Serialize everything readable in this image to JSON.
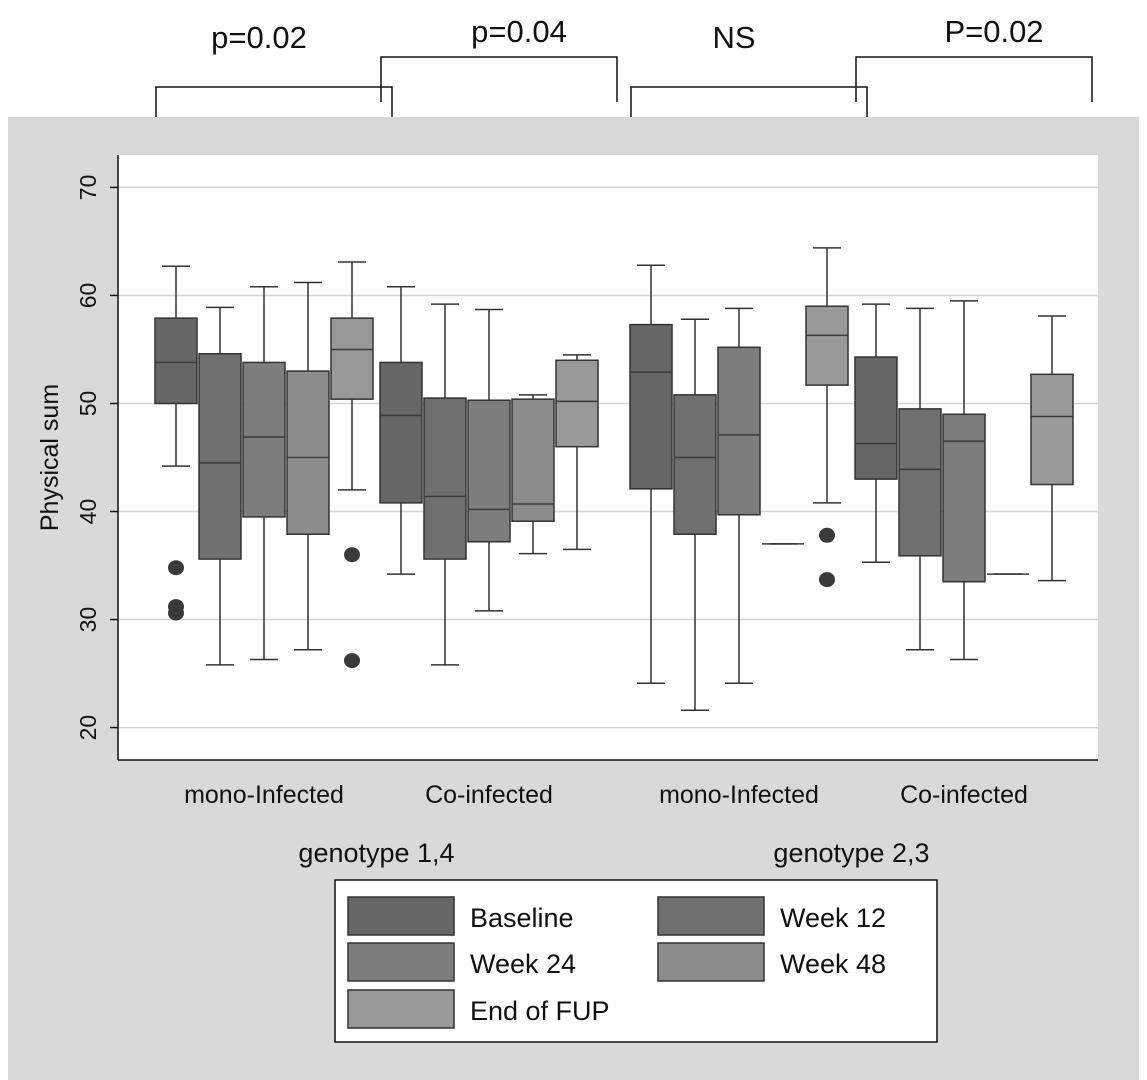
{
  "chart_data": {
    "type": "box",
    "ylabel": "Physical sum",
    "ylim": [
      17,
      73
    ],
    "yticks": [
      20,
      30,
      40,
      50,
      60,
      70
    ],
    "grid": true,
    "legend_position": "bottom",
    "groups": [
      {
        "label": "genotype 1,4",
        "subgroups": [
          "mono-Infected",
          "Co-infected"
        ]
      },
      {
        "label": "genotype 2,3",
        "subgroups": [
          "mono-Infected",
          "Co-infected"
        ]
      }
    ],
    "series": [
      {
        "name": "Baseline",
        "color": "#666666"
      },
      {
        "name": "Week 12",
        "color": "#6f6f6f"
      },
      {
        "name": "Week 24",
        "color": "#7d7d7d"
      },
      {
        "name": "Week 48",
        "color": "#8c8c8c"
      },
      {
        "name": "End of FUP",
        "color": "#999999"
      }
    ],
    "boxes": [
      {
        "group": 0,
        "subgroup": 0,
        "series": 0,
        "whisker_low": 44.2,
        "q1": 50.0,
        "median": 53.8,
        "q3": 57.9,
        "whisker_high": 62.7,
        "outliers": [
          34.8,
          31.2,
          30.6
        ]
      },
      {
        "group": 0,
        "subgroup": 0,
        "series": 1,
        "whisker_low": 25.8,
        "q1": 35.6,
        "median": 44.5,
        "q3": 54.6,
        "whisker_high": 58.9,
        "outliers": []
      },
      {
        "group": 0,
        "subgroup": 0,
        "series": 2,
        "whisker_low": 26.3,
        "q1": 39.5,
        "median": 46.9,
        "q3": 53.8,
        "whisker_high": 60.8,
        "outliers": []
      },
      {
        "group": 0,
        "subgroup": 0,
        "series": 3,
        "whisker_low": 27.2,
        "q1": 37.9,
        "median": 45.0,
        "q3": 53.0,
        "whisker_high": 61.2,
        "outliers": []
      },
      {
        "group": 0,
        "subgroup": 0,
        "series": 4,
        "whisker_low": 42.0,
        "q1": 50.4,
        "median": 55.0,
        "q3": 57.9,
        "whisker_high": 63.1,
        "outliers": [
          36.0,
          26.2
        ]
      },
      {
        "group": 0,
        "subgroup": 1,
        "series": 0,
        "whisker_low": 34.2,
        "q1": 40.8,
        "median": 48.9,
        "q3": 53.8,
        "whisker_high": 60.8,
        "outliers": []
      },
      {
        "group": 0,
        "subgroup": 1,
        "series": 1,
        "whisker_low": 25.8,
        "q1": 35.6,
        "median": 41.4,
        "q3": 50.5,
        "whisker_high": 59.2,
        "outliers": []
      },
      {
        "group": 0,
        "subgroup": 1,
        "series": 2,
        "whisker_low": 30.8,
        "q1": 37.2,
        "median": 40.2,
        "q3": 50.3,
        "whisker_high": 58.7,
        "outliers": []
      },
      {
        "group": 0,
        "subgroup": 1,
        "series": 3,
        "whisker_low": 36.1,
        "q1": 39.1,
        "median": 40.7,
        "q3": 50.4,
        "whisker_high": 50.8,
        "outliers": []
      },
      {
        "group": 0,
        "subgroup": 1,
        "series": 4,
        "whisker_low": 36.5,
        "q1": 46.0,
        "median": 50.2,
        "q3": 54.0,
        "whisker_high": 54.5,
        "outliers": []
      },
      {
        "group": 1,
        "subgroup": 0,
        "series": 0,
        "whisker_low": 24.1,
        "q1": 42.1,
        "median": 52.9,
        "q3": 57.3,
        "whisker_high": 62.8,
        "outliers": []
      },
      {
        "group": 1,
        "subgroup": 0,
        "series": 1,
        "whisker_low": 21.6,
        "q1": 37.9,
        "median": 45.0,
        "q3": 50.8,
        "whisker_high": 57.8,
        "outliers": []
      },
      {
        "group": 1,
        "subgroup": 0,
        "series": 2,
        "whisker_low": 24.1,
        "q1": 39.7,
        "median": 47.1,
        "q3": 55.2,
        "whisker_high": 58.8,
        "outliers": []
      },
      {
        "group": 1,
        "subgroup": 0,
        "series": 3,
        "whisker_low": 37.0,
        "q1": 37.0,
        "median": 37.0,
        "q3": 37.0,
        "whisker_high": 37.0,
        "outliers": []
      },
      {
        "group": 1,
        "subgroup": 0,
        "series": 4,
        "whisker_low": 40.8,
        "q1": 51.7,
        "median": 56.3,
        "q3": 59.0,
        "whisker_high": 64.4,
        "outliers": [
          37.8,
          33.7
        ]
      },
      {
        "group": 1,
        "subgroup": 1,
        "series": 0,
        "whisker_low": 35.3,
        "q1": 43.0,
        "median": 46.3,
        "q3": 54.3,
        "whisker_high": 59.2,
        "outliers": []
      },
      {
        "group": 1,
        "subgroup": 1,
        "series": 1,
        "whisker_low": 27.2,
        "q1": 35.9,
        "median": 43.9,
        "q3": 49.5,
        "whisker_high": 58.8,
        "outliers": []
      },
      {
        "group": 1,
        "subgroup": 1,
        "series": 2,
        "whisker_low": 26.3,
        "q1": 33.5,
        "median": 46.5,
        "q3": 49.0,
        "whisker_high": 59.5,
        "outliers": []
      },
      {
        "group": 1,
        "subgroup": 1,
        "series": 3,
        "whisker_low": 34.2,
        "q1": 34.2,
        "median": 34.2,
        "q3": 34.2,
        "whisker_high": 34.2,
        "outliers": []
      },
      {
        "group": 1,
        "subgroup": 1,
        "series": 4,
        "whisker_low": 33.6,
        "q1": 42.5,
        "median": 48.8,
        "q3": 52.7,
        "whisker_high": 58.1,
        "outliers": []
      }
    ],
    "annotations": [
      {
        "text": "p=0.02",
        "from": {
          "group": 0,
          "subgroup": 0,
          "series": 0
        },
        "to": {
          "group": 0,
          "subgroup": 0,
          "series": 4
        }
      },
      {
        "text": "p=0.04",
        "from": {
          "group": 0,
          "subgroup": 1,
          "series": 0
        },
        "to": {
          "group": 0,
          "subgroup": 1,
          "series": 4
        }
      },
      {
        "text": "NS",
        "from": {
          "group": 1,
          "subgroup": 0,
          "series": 0
        },
        "to": {
          "group": 1,
          "subgroup": 0,
          "series": 4
        }
      },
      {
        "text": "P=0.02",
        "from": {
          "group": 1,
          "subgroup": 1,
          "series": 0
        },
        "to": {
          "group": 1,
          "subgroup": 1,
          "series": 4
        }
      }
    ]
  }
}
